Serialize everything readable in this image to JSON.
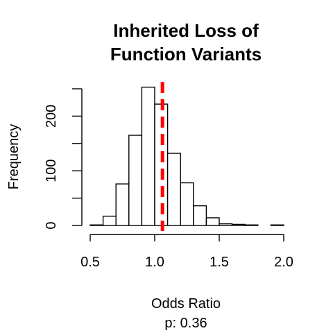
{
  "chart_data": {
    "type": "bar",
    "title_lines": [
      "Inherited Loss of",
      "Function Variants"
    ],
    "xlabel": "Odds Ratio",
    "subtitle": "p: 0.36",
    "ylabel": "Frequency",
    "bins": [
      {
        "x0": 0.5,
        "x1": 0.6,
        "count": 1
      },
      {
        "x0": 0.6,
        "x1": 0.7,
        "count": 17
      },
      {
        "x0": 0.7,
        "x1": 0.8,
        "count": 76
      },
      {
        "x0": 0.8,
        "x1": 0.9,
        "count": 165
      },
      {
        "x0": 0.9,
        "x1": 1.0,
        "count": 253
      },
      {
        "x0": 1.0,
        "x1": 1.1,
        "count": 222
      },
      {
        "x0": 1.1,
        "x1": 1.2,
        "count": 132
      },
      {
        "x0": 1.2,
        "x1": 1.3,
        "count": 78
      },
      {
        "x0": 1.3,
        "x1": 1.4,
        "count": 36
      },
      {
        "x0": 1.4,
        "x1": 1.5,
        "count": 14
      },
      {
        "x0": 1.5,
        "x1": 1.6,
        "count": 3
      },
      {
        "x0": 1.6,
        "x1": 1.7,
        "count": 2
      },
      {
        "x0": 1.7,
        "x1": 1.8,
        "count": 1
      },
      {
        "x0": 1.8,
        "x1": 1.9,
        "count": 0
      },
      {
        "x0": 1.9,
        "x1": 2.0,
        "count": 1
      }
    ],
    "xlim": [
      0.5,
      2.0
    ],
    "ylim": [
      0,
      250
    ],
    "x_ticks": [
      0.5,
      1.0,
      1.5,
      2.0
    ],
    "x_tick_labels": [
      "0.5",
      "1.0",
      "1.5",
      "2.0"
    ],
    "y_ticks": [
      0,
      100,
      200
    ],
    "y_minor_ticks": [
      50,
      150,
      250
    ],
    "observed_value": 1.06,
    "observed_line_color": "#ff0000",
    "grid": false
  }
}
